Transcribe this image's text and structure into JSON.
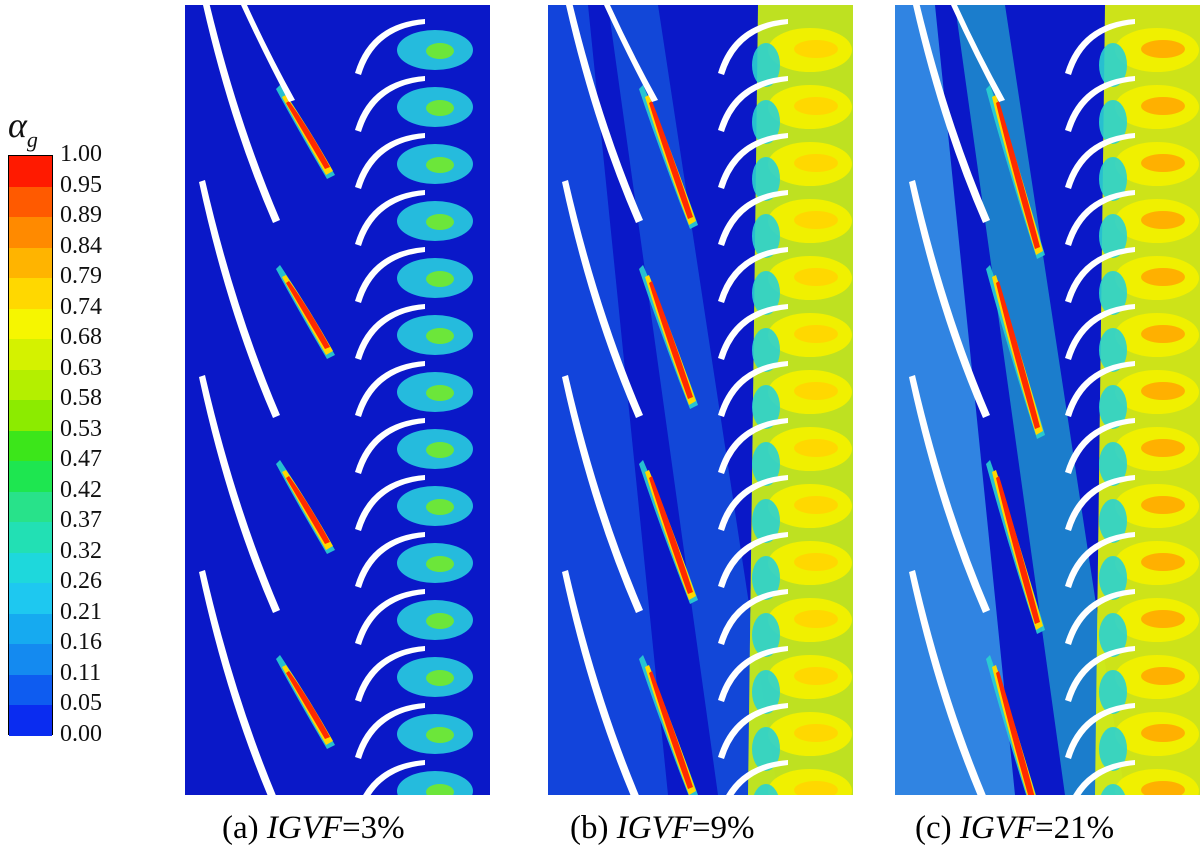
{
  "legend": {
    "title_symbol": "α",
    "title_subscript": "g",
    "ticks": [
      "1.00",
      "0.95",
      "0.89",
      "0.84",
      "0.79",
      "0.74",
      "0.68",
      "0.63",
      "0.58",
      "0.53",
      "0.47",
      "0.42",
      "0.37",
      "0.32",
      "0.26",
      "0.21",
      "0.16",
      "0.11",
      "0.05",
      "0.00"
    ],
    "colors": [
      "#ff1a00",
      "#ff5a00",
      "#ff8a00",
      "#ffb400",
      "#ffd800",
      "#f6f600",
      "#d4f200",
      "#b4ef00",
      "#8ceb00",
      "#3ce61a",
      "#1ee650",
      "#28e28a",
      "#22e0b4",
      "#1ed8dc",
      "#1ec8f0",
      "#16aaf0",
      "#148af0",
      "#0e5cf0",
      "#0a2cf0"
    ]
  },
  "panels": [
    {
      "label_prefix": "(a) ",
      "label_var": "IGVF",
      "label_value": "=3%",
      "igvf": 0.03
    },
    {
      "label_prefix": "(b) ",
      "label_var": "IGVF",
      "label_value": "=9%",
      "igvf": 0.09
    },
    {
      "label_prefix": "(c) ",
      "label_var": "IGVF",
      "label_value": "=21%",
      "igvf": 0.21
    }
  ]
}
